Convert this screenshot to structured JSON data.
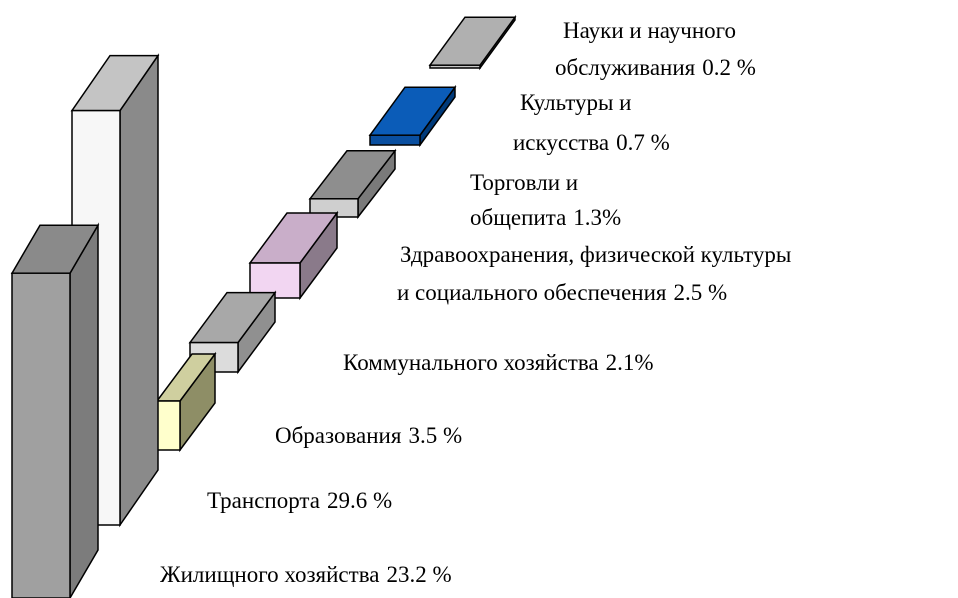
{
  "chart_data": {
    "type": "bar3d",
    "categories": [
      [
        "Науки и научного",
        "обслуживания"
      ],
      [
        "Культуры  и",
        "искусства"
      ],
      [
        "Торговли и",
        "общепита"
      ],
      [
        "Здравоохранения, физической культуры",
        "и социального обеспечения"
      ],
      [
        "Коммунального хозяйства"
      ],
      [
        "Образования"
      ],
      [
        "Транспорта"
      ],
      [
        "Жилищного хозяйства"
      ]
    ],
    "values": [
      0.2,
      0.7,
      1.3,
      2.5,
      2.1,
      3.5,
      29.6,
      23.2
    ],
    "value_labels": [
      "0.2 %",
      "0.7 %",
      "1.3%",
      "2.5 %",
      "2.1%",
      "3.5 %",
      "29.6 %",
      "23.2 %"
    ],
    "colors": [
      [
        "#c8c8c8",
        "#9a9a9a",
        "#b0b0b0"
      ],
      [
        "#0a4fa0",
        "#003a7a",
        "#0b5cb8"
      ],
      [
        "#cfcfcf",
        "#7a7a7a",
        "#8e8e8e"
      ],
      [
        "#f2d6f2",
        "#8a7a8a",
        "#c9aec9"
      ],
      [
        "#dcdcdc",
        "#909090",
        "#a8a8a8"
      ],
      [
        "#ffffcc",
        "#8e8e66",
        "#cfcf9f"
      ],
      [
        "#f7f7f7",
        "#8a8a8a",
        "#c4c4c4"
      ],
      [
        "#a0a0a0",
        "#7c7c7c",
        "#8a8a8a"
      ]
    ]
  }
}
